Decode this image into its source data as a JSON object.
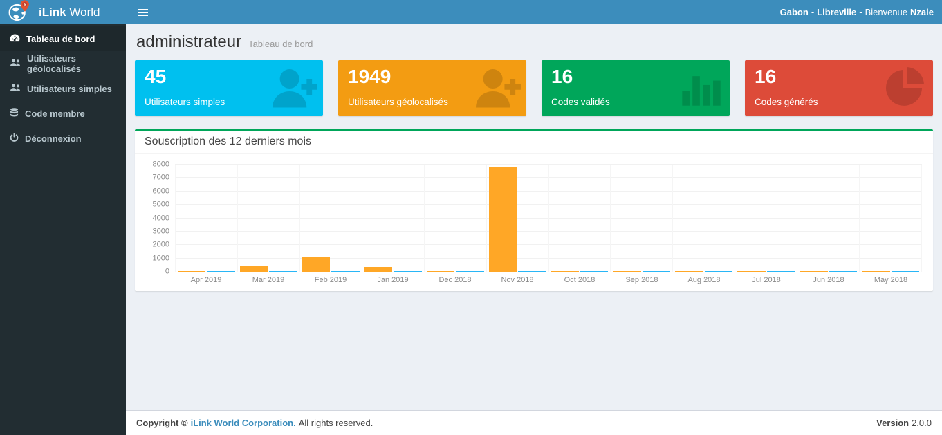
{
  "brand": {
    "bold": "iLink",
    "light": "World"
  },
  "topbar": {
    "country": "Gabon",
    "separator": "-",
    "city": "Libreville",
    "greeting": "Bienvenue",
    "user": "Nzale"
  },
  "sidebar": {
    "items": [
      {
        "label": "Tableau de bord",
        "icon": "dashboard",
        "active": true
      },
      {
        "label": "Utilisateurs géolocalisés",
        "icon": "users",
        "active": false
      },
      {
        "label": "Utilisateurs simples",
        "icon": "users",
        "active": false
      },
      {
        "label": "Code membre",
        "icon": "database",
        "active": false
      },
      {
        "label": "Déconnexion",
        "icon": "power",
        "active": false
      }
    ]
  },
  "page_header": {
    "title": "administrateur",
    "subtitle": "Tableau de bord"
  },
  "cards": [
    {
      "value": "45",
      "label": "Utilisateurs simples",
      "color": "#00c0ef",
      "icon": "user-plus"
    },
    {
      "value": "1949",
      "label": "Utilisateurs géolocalisés",
      "color": "#f39c12",
      "icon": "user-plus"
    },
    {
      "value": "16",
      "label": "Codes validés",
      "color": "#00a65a",
      "icon": "bar-chart"
    },
    {
      "value": "16",
      "label": "Codes générés",
      "color": "#dd4b39",
      "icon": "pie-chart"
    }
  ],
  "chart": {
    "title": "Souscription des 12 derniers mois"
  },
  "chart_data": {
    "type": "bar",
    "title": "Souscription des 12 derniers mois",
    "categories": [
      "Apr 2019",
      "Mar 2019",
      "Feb 2019",
      "Jan 2019",
      "Dec 2018",
      "Nov 2018",
      "Oct 2018",
      "Sep 2018",
      "Aug 2018",
      "Jul 2018",
      "Jun 2018",
      "May 2018"
    ],
    "series": [
      {
        "name": "serie-orange",
        "color": "#ffa726",
        "values": [
          70,
          400,
          1100,
          380,
          70,
          7800,
          70,
          70,
          70,
          70,
          70,
          70
        ]
      },
      {
        "name": "serie-bleue",
        "color": "#29b6f6",
        "values": [
          50,
          50,
          50,
          50,
          50,
          50,
          50,
          50,
          50,
          50,
          50,
          50
        ]
      }
    ],
    "ylim": [
      0,
      8000
    ],
    "ytick_step": 1000,
    "grid": true,
    "legend": "none"
  },
  "footer": {
    "copyright_prefix": "Copyright ©",
    "company": "iLink World Corporation.",
    "suffix": "All rights reserved.",
    "version_label": "Version",
    "version": "2.0.0"
  }
}
